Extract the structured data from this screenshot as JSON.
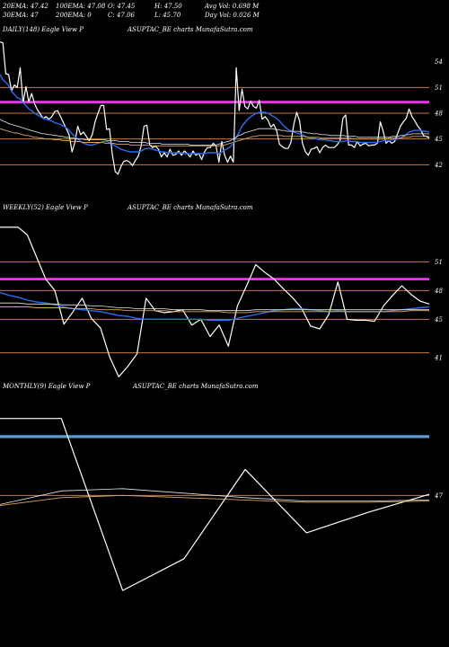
{
  "header": {
    "row1": [
      "20EMA: 47.42",
      "100EMA: 47.08",
      "O: 47.45",
      "H: 47.50",
      "Avg Vol: 0.698  M"
    ],
    "row2": [
      "30EMA: 47",
      "200EMA: 0",
      "C: 47.06",
      "L: 45.70",
      "Day Vol: 0.026  M"
    ]
  },
  "chart_data": [
    {
      "type": "line",
      "panel": "daily",
      "label_left": "DAILY(148) Eagle  View  P",
      "label_center": "ASUPTAC_BE charts MunafaSutra.com",
      "ylim": [
        39,
        57
      ],
      "yticks": [
        54,
        51,
        48,
        45,
        42
      ],
      "hlines": [
        {
          "value": 51,
          "color": "#c8793a"
        },
        {
          "value": 49.3,
          "color": "#ff33ff"
        },
        {
          "value": 48,
          "color": "#c8793a"
        },
        {
          "value": 45,
          "color": "#c8793a"
        },
        {
          "value": 42,
          "color": "#c8793a"
        }
      ],
      "series": [
        {
          "role": "price",
          "color": "#ffffff",
          "values": [
            56.3,
            56.2,
            52.6,
            52.5,
            50.6,
            51.3,
            51.0,
            53.3,
            49.2,
            51.1,
            49.3,
            50.3,
            49.1,
            48.4,
            47.9,
            47.4,
            47.6,
            47.3,
            47.6,
            48.2,
            48.3,
            47.6,
            46.9,
            46.2,
            45.5,
            43.5,
            44.6,
            46.5,
            45.5,
            45.8,
            45.3,
            44.8,
            45.5,
            47.0,
            48.0,
            48.9,
            48.9,
            46.1,
            46.2,
            43.2,
            41.2,
            40.9,
            41.8,
            42.4,
            42.5,
            42.3,
            41.9,
            42.5,
            43.0,
            44.2,
            46.5,
            46.6,
            44.3,
            44.0,
            44.2,
            43.8,
            42.9,
            43.4,
            42.9,
            43.8,
            43.1,
            43.2,
            43.6,
            43.1,
            43.6,
            43.3,
            42.9,
            43.6,
            43.1,
            43.3,
            42.6,
            43.5,
            44.0,
            44.0,
            44.5,
            44.2,
            42.3,
            44.7,
            43.1,
            42.3,
            43.0,
            42.3,
            53.3,
            48.3,
            50.8,
            48.8,
            48.5,
            49.4,
            48.8,
            48.6,
            49.5,
            47.3,
            47.6,
            47.2,
            46.4,
            46.7,
            46.0,
            44.4,
            44.1,
            43.9,
            43.9,
            44.6,
            46.7,
            48.1,
            47.1,
            44.5,
            43.5,
            43.1,
            43.8,
            43.9,
            44.1,
            43.4,
            44.0,
            44.3,
            44.0,
            44.0,
            44.0,
            44.3,
            44.8,
            47.4,
            47.8,
            44.3,
            44.3,
            44.0,
            44.7,
            44.2,
            44.4,
            44.5,
            44.2,
            44.3,
            44.3,
            44.5,
            47.0,
            45.9,
            44.5,
            44.8,
            44.5,
            44.7,
            45.6,
            46.5,
            47.0,
            47.4,
            48.5,
            47.6,
            47.1,
            46.5,
            46.1,
            45.4,
            45.3,
            45.1
          ]
        },
        {
          "role": "ema-blue",
          "color": "#2a6cf0",
          "values": [
            52.5,
            51.9,
            51.6,
            51.2,
            50.6,
            50.2,
            49.8,
            49.7,
            49.2,
            48.9,
            48.5,
            48.3,
            48.0,
            47.8,
            47.6,
            47.4,
            47.3,
            47.2,
            47.1,
            46.9,
            46.8,
            46.7,
            46.5,
            46.3,
            46.0,
            45.6,
            45.3,
            45.0,
            44.7,
            44.5,
            44.4,
            44.3,
            44.3,
            44.4,
            44.5,
            44.6,
            44.7,
            44.7,
            44.6,
            44.4,
            44.2,
            44.0,
            43.8,
            43.7,
            43.6,
            43.5,
            43.5,
            43.5,
            43.5,
            43.6,
            43.8,
            43.9,
            43.9,
            43.8,
            43.7,
            43.6,
            43.5,
            43.5,
            43.4,
            43.4,
            43.4,
            43.4,
            43.4,
            43.4,
            43.3,
            43.3,
            43.3,
            43.3,
            43.3,
            43.3,
            43.3,
            43.3,
            43.4,
            43.4,
            43.4,
            43.4,
            43.3,
            43.5,
            43.7,
            43.9,
            44.1,
            44.5,
            45.2,
            45.8,
            46.5,
            46.9,
            47.3,
            47.6,
            47.8,
            48.0,
            48.1,
            48.1,
            48.1,
            48.0,
            47.8,
            47.6,
            47.4,
            47.1,
            46.7,
            46.4,
            46.1,
            45.9,
            45.8,
            45.7,
            45.6,
            45.5,
            45.3,
            45.2,
            45.1,
            45.1,
            45.0,
            44.9,
            44.9,
            44.9,
            44.8,
            44.8,
            44.7,
            44.7,
            44.7,
            44.7,
            44.8,
            44.8,
            44.7,
            44.7,
            44.7,
            44.6,
            44.6,
            44.6,
            44.6,
            44.6,
            44.6,
            44.6,
            44.7,
            44.8,
            44.8,
            44.8,
            44.9,
            44.9,
            45.0,
            45.1,
            45.3,
            45.5,
            45.8,
            45.9,
            46.0,
            46.0,
            46.0,
            45.9,
            45.9,
            45.8
          ]
        },
        {
          "role": "ema-100",
          "color": "#e8e8e8",
          "values": [
            47.3,
            47.1,
            47.0,
            46.8,
            46.7,
            46.6,
            46.5,
            46.4,
            46.3,
            46.2,
            46.1,
            46.0,
            45.9,
            45.8,
            45.7,
            45.6,
            45.6,
            45.5,
            45.5,
            45.4,
            45.4,
            45.3,
            45.3,
            45.2,
            45.2,
            45.1,
            45.1,
            45.0,
            45.0,
            45.0,
            44.9,
            44.9,
            44.9,
            44.9,
            44.9,
            44.9,
            44.9,
            44.9,
            44.8,
            44.8,
            44.8,
            44.8,
            44.7,
            44.7,
            44.7,
            44.7,
            44.6,
            44.6,
            44.6,
            44.6,
            44.6,
            44.6,
            44.5,
            44.5,
            44.5,
            44.5,
            44.5,
            44.4,
            44.4,
            44.4,
            44.4,
            44.4,
            44.4,
            44.4,
            44.4,
            44.4,
            44.4,
            44.3,
            44.3,
            44.3,
            44.3,
            44.3,
            44.3,
            44.3,
            44.3,
            44.3,
            44.3,
            44.4,
            44.5,
            44.6,
            44.7,
            44.8,
            45.0,
            45.2,
            45.4,
            45.5,
            45.7,
            45.8,
            45.9,
            46.0,
            46.1,
            46.2,
            46.2,
            46.2,
            46.2,
            46.2,
            46.2,
            46.1,
            46.1,
            46.0,
            46.0,
            45.9,
            45.9,
            45.9,
            45.9,
            45.9,
            45.8,
            45.8,
            45.7,
            45.7,
            45.6,
            45.6,
            45.6,
            45.5,
            45.5,
            45.5,
            45.4,
            45.4,
            45.4,
            45.4,
            45.4,
            45.4,
            45.3,
            45.3,
            45.3,
            45.3,
            45.2,
            45.2,
            45.2,
            45.2,
            45.2,
            45.2,
            45.2,
            45.2,
            45.2,
            45.2,
            45.2,
            45.2,
            45.3,
            45.3,
            45.3,
            45.4,
            45.4,
            45.5,
            45.5,
            45.6,
            45.6,
            45.6,
            45.6,
            45.6,
            45.6,
            45.6
          ]
        },
        {
          "role": "ema-200",
          "color": "#d9a85a",
          "values": [
            46.2,
            46.1,
            46.0,
            45.9,
            45.8,
            45.7,
            45.7,
            45.6,
            45.5,
            45.4,
            45.4,
            45.3,
            45.2,
            45.2,
            45.1,
            45.1,
            45.0,
            45.0,
            45.0,
            44.9,
            44.9,
            44.9,
            44.8,
            44.8,
            44.8,
            44.7,
            44.7,
            44.7,
            44.7,
            44.6,
            44.6,
            44.6,
            44.6,
            44.6,
            44.6,
            44.6,
            44.6,
            44.5,
            44.5,
            44.5,
            44.5,
            44.4,
            44.4,
            44.4,
            44.4,
            44.4,
            44.3,
            44.3,
            44.3,
            44.3,
            44.3,
            44.3,
            44.3,
            44.3,
            44.2,
            44.2,
            44.2,
            44.2,
            44.2,
            44.2,
            44.2,
            44.2,
            44.2,
            44.2,
            44.2,
            44.2,
            44.2,
            44.2,
            44.2,
            44.2,
            44.2,
            44.2,
            44.2,
            44.2,
            44.2,
            44.2,
            44.2,
            44.2,
            44.3,
            44.3,
            44.4,
            44.5,
            44.6,
            44.7,
            44.8,
            44.9,
            45.0,
            45.1,
            45.2,
            45.3,
            45.3,
            45.4,
            45.4,
            45.4,
            45.4,
            45.4,
            45.4,
            45.4,
            45.4,
            45.4,
            45.3,
            45.3,
            45.3,
            45.3,
            45.3,
            45.3,
            45.3,
            45.3,
            45.2,
            45.2,
            45.2,
            45.2,
            45.2,
            45.1,
            45.1,
            45.1,
            45.1,
            45.1,
            45.1,
            45.1,
            45.1,
            45.1,
            45.1,
            45.1,
            45.0,
            45.0,
            45.0,
            45.0,
            45.0,
            45.0,
            45.0,
            45.0,
            45.0,
            45.0,
            45.0,
            45.0,
            45.0,
            45.1,
            45.1,
            45.1,
            45.1,
            45.1,
            45.2,
            45.2,
            45.2,
            45.3,
            45.3,
            45.3,
            45.3,
            45.3,
            45.3,
            45.3
          ]
        }
      ]
    },
    {
      "type": "line",
      "panel": "weekly",
      "label_left": "WEEKLY(52) Eagle  View  P",
      "label_center": "ASUPTAC_BE charts MunafaSutra.com",
      "ylim": [
        38,
        56
      ],
      "yticks": [
        51,
        48,
        45,
        41
      ],
      "hlines": [
        {
          "value": 51,
          "color": "#c8793a"
        },
        {
          "value": 49.2,
          "color": "#ff33ff"
        },
        {
          "value": 48,
          "color": "#c8793a"
        },
        {
          "value": 45,
          "color": "#c8793a"
        },
        {
          "value": 41.5,
          "color": "#c8793a"
        }
      ],
      "series": [
        {
          "role": "price",
          "color": "#ffffff",
          "values": [
            54.6,
            54.6,
            54.6,
            53.8,
            51.5,
            49.2,
            48.0,
            44.5,
            45.8,
            47.2,
            45.1,
            44.1,
            41.1,
            39.0,
            40.1,
            41.4,
            47.2,
            45.9,
            45.7,
            45.8,
            46.0,
            44.4,
            45.0,
            43.2,
            44.4,
            42.2,
            46.4,
            48.5,
            50.7,
            49.9,
            49.2,
            48.2,
            47.3,
            46.2,
            44.3,
            44.0,
            45.5,
            48.9,
            45.0,
            44.9,
            44.9,
            44.8,
            46.4,
            47.5,
            48.5,
            47.6,
            46.9,
            46.6
          ]
        },
        {
          "role": "ema-blue",
          "color": "#2a6cf0",
          "values": [
            47.8,
            47.5,
            47.3,
            47.0,
            46.8,
            46.7,
            46.5,
            46.3,
            46.1,
            46.0,
            45.9,
            45.8,
            45.6,
            45.4,
            45.3,
            45.1,
            45.0,
            45.0,
            45.0,
            45.0,
            45.0,
            45.0,
            45.0,
            44.9,
            44.9,
            44.9,
            45.1,
            45.3,
            45.5,
            45.7,
            45.9,
            46.0,
            46.1,
            46.1,
            46.0,
            45.9,
            45.8,
            45.9,
            45.8,
            45.8,
            45.8,
            45.8,
            45.8,
            45.9,
            46.0,
            46.1,
            46.2,
            46.3
          ]
        },
        {
          "role": "ema-100",
          "color": "#e8e8e8",
          "values": [
            46.7,
            46.7,
            46.7,
            46.6,
            46.6,
            46.6,
            46.6,
            46.5,
            46.5,
            46.5,
            46.4,
            46.4,
            46.3,
            46.2,
            46.2,
            46.1,
            46.1,
            46.1,
            46.1,
            46.0,
            46.0,
            46.0,
            46.0,
            45.9,
            45.9,
            45.9,
            45.9,
            45.9,
            46.0,
            46.0,
            46.0,
            46.0,
            46.0,
            46.0,
            46.0,
            46.0,
            46.0,
            46.0,
            46.0,
            46.0,
            46.0,
            46.0,
            46.0,
            46.0,
            46.0,
            46.0,
            46.0,
            46.0
          ]
        },
        {
          "role": "ema-200",
          "color": "#d9a85a",
          "values": [
            46.3,
            46.3,
            46.3,
            46.3,
            46.2,
            46.2,
            46.2,
            46.2,
            46.1,
            46.1,
            46.1,
            46.0,
            46.0,
            46.0,
            45.9,
            45.9,
            45.9,
            45.9,
            45.9,
            45.8,
            45.8,
            45.8,
            45.8,
            45.8,
            45.8,
            45.7,
            45.7,
            45.7,
            45.8,
            45.8,
            45.8,
            45.8,
            45.8,
            45.8,
            45.8,
            45.8,
            45.8,
            45.8,
            45.8,
            45.8,
            45.8,
            45.8,
            45.8,
            45.8,
            45.8,
            45.9,
            45.9,
            45.9
          ]
        }
      ]
    },
    {
      "type": "line",
      "panel": "monthly",
      "label_left": "MONTHLY(9) Eagle  View  P",
      "label_center": "ASUPTAC_BE charts MunafaSutra.com",
      "ylim": [
        34,
        56
      ],
      "yticks": [
        47
      ],
      "hlines": [
        {
          "value": 52.2,
          "color": "#5b9bd5",
          "thick": true
        },
        {
          "value": 47,
          "color": "#c8793a"
        }
      ],
      "series": [
        {
          "role": "price",
          "color": "#ffffff",
          "values": [
            53.8,
            53.8,
            38.6,
            41.4,
            49.3,
            43.7,
            45.5,
            47.1
          ]
        },
        {
          "role": "ema-100",
          "color": "#e8e8e8",
          "values": [
            46.2,
            47.4,
            47.6,
            47.2,
            46.8,
            46.5,
            46.5,
            46.6
          ]
        },
        {
          "role": "ema-200",
          "color": "#d9a85a",
          "values": [
            46.1,
            46.8,
            47.0,
            46.8,
            46.6,
            46.4,
            46.4,
            46.5
          ]
        }
      ]
    }
  ]
}
